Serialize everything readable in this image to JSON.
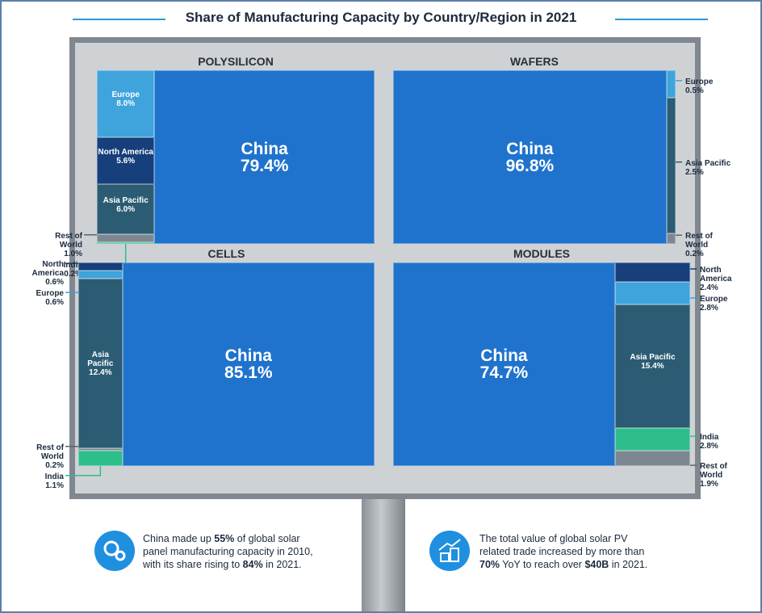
{
  "title": "Share of Manufacturing Capacity by Country/Region in 2021",
  "chart_data": [
    {
      "type": "treemap",
      "title": "POLYSILICON",
      "categories": [
        "China",
        "Europe",
        "North America",
        "Asia Pacific",
        "Rest of World",
        "India"
      ],
      "values": [
        79.4,
        8.0,
        5.6,
        6.0,
        1.0,
        0.2
      ],
      "value_labels": [
        "79.4%",
        "8.0%",
        "5.6%",
        "6.0%",
        "1.0%",
        "0.2%"
      ],
      "colors": [
        "#1f73cc",
        "#3fa3dc",
        "#163f7c",
        "#2b5c73",
        "#7d8791",
        "#2dbd8a"
      ]
    },
    {
      "type": "treemap",
      "title": "WAFERS",
      "categories": [
        "China",
        "Europe",
        "Asia Pacific",
        "Rest of World"
      ],
      "values": [
        96.8,
        0.5,
        2.5,
        0.2
      ],
      "value_labels": [
        "96.8%",
        "0.5%",
        "2.5%",
        "0.2%"
      ],
      "colors": [
        "#1f73cc",
        "#3fa3dc",
        "#2b5c73",
        "#7d8791"
      ]
    },
    {
      "type": "treemap",
      "title": "CELLS",
      "categories": [
        "China",
        "North America",
        "Europe",
        "Asia Pacific",
        "Rest of World",
        "India"
      ],
      "values": [
        85.1,
        0.6,
        0.6,
        12.4,
        0.2,
        1.1
      ],
      "value_labels": [
        "85.1%",
        "0.6%",
        "0.6%",
        "12.4%",
        "0.2%",
        "1.1%"
      ],
      "colors": [
        "#1f73cc",
        "#163f7c",
        "#3fa3dc",
        "#2b5c73",
        "#7d8791",
        "#2dbd8a"
      ]
    },
    {
      "type": "treemap",
      "title": "MODULES",
      "categories": [
        "China",
        "North America",
        "Europe",
        "Asia Pacific",
        "India",
        "Rest of World"
      ],
      "values": [
        74.7,
        2.4,
        2.8,
        15.4,
        2.8,
        1.9
      ],
      "value_labels": [
        "74.7%",
        "2.4%",
        "2.8%",
        "15.4%",
        "2.8%",
        "1.9%"
      ],
      "colors": [
        "#1f73cc",
        "#163f7c",
        "#3fa3dc",
        "#2b5c73",
        "#2dbd8a",
        "#7d8791"
      ]
    }
  ],
  "notes": [
    [
      {
        "text": "China made up "
      },
      {
        "text": "55%",
        "bold": true
      },
      {
        "text": " of global solar panel manufacturing capacity in 2010, with its share rising to "
      },
      {
        "text": "84%",
        "bold": true
      },
      {
        "text": " in 2021."
      }
    ],
    [
      {
        "text": "The total value of global solar PV related trade increased by more than "
      },
      {
        "text": "70%",
        "bold": true
      },
      {
        "text": " YoY to reach over "
      },
      {
        "text": "$40B",
        "bold": true
      },
      {
        "text": " in 2021."
      }
    ]
  ]
}
